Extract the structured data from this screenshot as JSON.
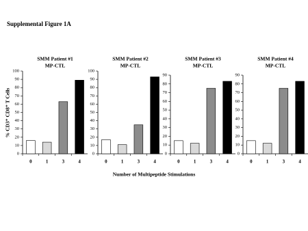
{
  "figure": {
    "title": "Supplemental Figure 1A",
    "ylabel": "% CD3⁺ CD8⁺ T Cells",
    "xlabel": "Number of Multipeptide Stimulations"
  },
  "chart_data": [
    {
      "type": "bar",
      "title": "SMM Patient #1",
      "subtitle": "MP-CTL",
      "categories": [
        "0",
        "1",
        "3",
        "4"
      ],
      "values": [
        16,
        14,
        63,
        89
      ],
      "colors": [
        "#ffffff",
        "#d9d9d9",
        "#8c8c8c",
        "#000000"
      ],
      "ylim": [
        0,
        100
      ],
      "yticks": [
        0,
        10,
        20,
        30,
        40,
        50,
        60,
        70,
        80,
        90,
        100
      ]
    },
    {
      "type": "bar",
      "title": "SMM Patient #2",
      "subtitle": "MP-CTL",
      "categories": [
        "0",
        "1",
        "3",
        "4"
      ],
      "values": [
        17,
        11,
        35,
        93
      ],
      "colors": [
        "#ffffff",
        "#d9d9d9",
        "#8c8c8c",
        "#000000"
      ],
      "ylim": [
        0,
        100
      ],
      "yticks": [
        0,
        10,
        20,
        30,
        40,
        50,
        60,
        70,
        80,
        90,
        100
      ]
    },
    {
      "type": "bar",
      "title": "SMM Patient #3",
      "subtitle": "MP-CTL",
      "categories": [
        "0",
        "1",
        "3",
        "4"
      ],
      "values": [
        15,
        12,
        75,
        83
      ],
      "colors": [
        "#ffffff",
        "#d9d9d9",
        "#8c8c8c",
        "#000000"
      ],
      "ylim": [
        0,
        90
      ],
      "yticks": [
        0,
        10,
        20,
        30,
        40,
        50,
        60,
        70,
        80,
        90
      ]
    },
    {
      "type": "bar",
      "title": "SMM Patient #4",
      "subtitle": "MP-CTL",
      "categories": [
        "0",
        "1",
        "3",
        "4"
      ],
      "values": [
        15,
        12,
        75,
        83
      ],
      "colors": [
        "#ffffff",
        "#d9d9d9",
        "#8c8c8c",
        "#000000"
      ],
      "ylim": [
        0,
        90
      ],
      "yticks": [
        0,
        10,
        20,
        30,
        40,
        50,
        60,
        70,
        80,
        90
      ]
    }
  ]
}
